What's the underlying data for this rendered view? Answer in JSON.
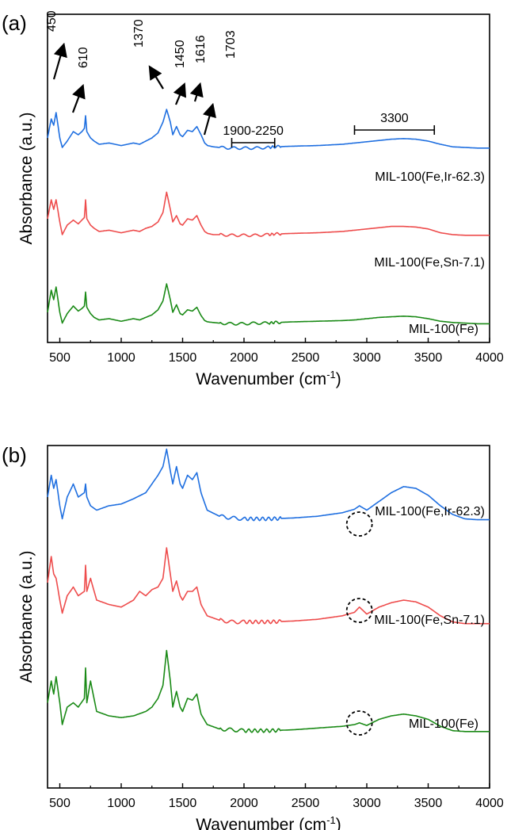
{
  "chart_data": [
    {
      "type": "line",
      "panel_label": "(a)",
      "xlabel": "Wavenumber (cm",
      "xlabel_sup": "-1",
      "xlabel_tail": ")",
      "ylabel": "Absorbance (a.u.)",
      "xlim": [
        400,
        4000
      ],
      "xticks": [
        500,
        1000,
        1500,
        2000,
        2500,
        3000,
        3500,
        4000
      ],
      "grid": false,
      "series": [
        {
          "name": "MIL-100(Fe,Ir-62.3)",
          "color": "#1f6fe0",
          "x": [
            400,
            430,
            450,
            470,
            500,
            520,
            560,
            610,
            650,
            680,
            700,
            710,
            720,
            750,
            780,
            820,
            900,
            1000,
            1100,
            1150,
            1200,
            1250,
            1300,
            1340,
            1370,
            1400,
            1420,
            1450,
            1480,
            1500,
            1540,
            1580,
            1616,
            1650,
            1680,
            1703,
            1750,
            1800,
            1900,
            2000,
            2100,
            2200,
            2250,
            2400,
            2600,
            2800,
            2900,
            3000,
            3100,
            3200,
            3300,
            3400,
            3500,
            3600,
            3700,
            3800,
            3900,
            4000
          ],
          "y": [
            0.2,
            0.5,
            0.4,
            0.6,
            0.2,
            0.05,
            0.15,
            0.3,
            0.25,
            0.3,
            0.35,
            0.55,
            0.3,
            0.2,
            0.15,
            0.1,
            0.12,
            0.08,
            0.12,
            0.1,
            0.15,
            0.2,
            0.28,
            0.45,
            0.65,
            0.45,
            0.25,
            0.38,
            0.25,
            0.22,
            0.32,
            0.3,
            0.38,
            0.25,
            0.12,
            0.08,
            0.06,
            0.05,
            0.04,
            0.04,
            0.04,
            0.05,
            0.06,
            0.07,
            0.08,
            0.1,
            0.12,
            0.14,
            0.16,
            0.18,
            0.19,
            0.18,
            0.15,
            0.1,
            0.06,
            0.05,
            0.04,
            0.04
          ]
        },
        {
          "name": "MIL-100(Fe,Sn-7.1)",
          "color": "#ee4c4c",
          "x": [
            400,
            430,
            450,
            470,
            500,
            520,
            560,
            610,
            650,
            680,
            700,
            710,
            720,
            750,
            780,
            820,
            900,
            1000,
            1100,
            1150,
            1200,
            1250,
            1300,
            1340,
            1370,
            1400,
            1420,
            1450,
            1480,
            1500,
            1540,
            1580,
            1616,
            1650,
            1680,
            1703,
            1750,
            1800,
            1900,
            2000,
            2100,
            2200,
            2250,
            2400,
            2600,
            2800,
            2900,
            3000,
            3100,
            3200,
            3300,
            3400,
            3500,
            3600,
            3700,
            3800,
            3900,
            4000
          ],
          "y": [
            0.3,
            0.6,
            0.45,
            0.6,
            0.25,
            0.05,
            0.2,
            0.28,
            0.22,
            0.28,
            0.32,
            0.6,
            0.3,
            0.2,
            0.15,
            0.1,
            0.12,
            0.08,
            0.12,
            0.1,
            0.15,
            0.18,
            0.25,
            0.4,
            0.72,
            0.45,
            0.25,
            0.35,
            0.22,
            0.2,
            0.3,
            0.28,
            0.35,
            0.2,
            0.1,
            0.07,
            0.05,
            0.05,
            0.04,
            0.04,
            0.04,
            0.05,
            0.06,
            0.07,
            0.08,
            0.1,
            0.12,
            0.14,
            0.16,
            0.18,
            0.18,
            0.17,
            0.14,
            0.08,
            0.05,
            0.04,
            0.04,
            0.04
          ]
        },
        {
          "name": "MIL-100(Fe)",
          "color": "#1a8a16",
          "x": [
            400,
            430,
            450,
            470,
            500,
            520,
            560,
            610,
            650,
            680,
            700,
            710,
            720,
            750,
            780,
            820,
            900,
            1000,
            1100,
            1150,
            1200,
            1250,
            1300,
            1340,
            1370,
            1400,
            1420,
            1450,
            1480,
            1500,
            1540,
            1580,
            1616,
            1650,
            1680,
            1703,
            1750,
            1800,
            1900,
            2000,
            2100,
            2200,
            2250,
            2400,
            2600,
            2800,
            2900,
            3000,
            3100,
            3200,
            3300,
            3400,
            3500,
            3600,
            3700,
            3800,
            3900,
            4000
          ],
          "y": [
            0.2,
            0.55,
            0.4,
            0.6,
            0.2,
            0.03,
            0.18,
            0.3,
            0.22,
            0.26,
            0.3,
            0.52,
            0.28,
            0.18,
            0.12,
            0.08,
            0.1,
            0.06,
            0.1,
            0.08,
            0.12,
            0.16,
            0.24,
            0.38,
            0.65,
            0.4,
            0.2,
            0.32,
            0.18,
            0.16,
            0.24,
            0.22,
            0.28,
            0.15,
            0.07,
            0.05,
            0.04,
            0.03,
            0.02,
            0.02,
            0.03,
            0.03,
            0.04,
            0.05,
            0.06,
            0.07,
            0.08,
            0.1,
            0.12,
            0.13,
            0.14,
            0.13,
            0.1,
            0.06,
            0.04,
            0.03,
            0.02,
            0.02
          ]
        }
      ],
      "arrows": [
        "450",
        "610",
        "1370",
        "1450",
        "1616",
        "1703"
      ],
      "ranges": [
        {
          "label": "1900-2250",
          "from": 1900,
          "to": 2250
        },
        {
          "label": "3300",
          "from": 2900,
          "to": 3550
        }
      ]
    },
    {
      "type": "line",
      "panel_label": "(b)",
      "xlabel": "Wavenumber (cm",
      "xlabel_sup": "-1",
      "xlabel_tail": ")",
      "ylabel": "Absorbance (a.u.)",
      "xlim": [
        400,
        4000
      ],
      "xticks": [
        500,
        1000,
        1500,
        2000,
        2500,
        3000,
        3500,
        4000
      ],
      "grid": false,
      "series": [
        {
          "name": "MIL-100(Fe,Ir-62.3)",
          "color": "#1f6fe0",
          "x": [
            400,
            430,
            450,
            470,
            500,
            520,
            560,
            610,
            650,
            700,
            710,
            720,
            750,
            800,
            900,
            1000,
            1100,
            1200,
            1250,
            1300,
            1340,
            1370,
            1400,
            1420,
            1450,
            1480,
            1500,
            1540,
            1580,
            1616,
            1650,
            1700,
            1800,
            1900,
            2000,
            2200,
            2400,
            2600,
            2800,
            2900,
            2940,
            3000,
            3100,
            3200,
            3300,
            3400,
            3500,
            3600,
            3700,
            3800,
            3900,
            4000
          ],
          "y": [
            0.3,
            0.55,
            0.4,
            0.5,
            0.2,
            0.05,
            0.3,
            0.45,
            0.3,
            0.35,
            0.45,
            0.3,
            0.2,
            0.15,
            0.2,
            0.22,
            0.28,
            0.35,
            0.45,
            0.55,
            0.65,
            0.85,
            0.6,
            0.45,
            0.65,
            0.45,
            0.4,
            0.55,
            0.5,
            0.58,
            0.35,
            0.15,
            0.08,
            0.06,
            0.05,
            0.05,
            0.06,
            0.08,
            0.12,
            0.16,
            0.2,
            0.15,
            0.25,
            0.35,
            0.42,
            0.4,
            0.32,
            0.2,
            0.1,
            0.05,
            0.04,
            0.04
          ]
        },
        {
          "name": "MIL-100(Fe,Sn-7.1)",
          "color": "#ee4c4c",
          "x": [
            400,
            430,
            450,
            470,
            500,
            520,
            560,
            610,
            650,
            700,
            710,
            720,
            750,
            800,
            900,
            1000,
            1100,
            1150,
            1200,
            1250,
            1300,
            1340,
            1370,
            1400,
            1420,
            1450,
            1480,
            1500,
            1540,
            1580,
            1616,
            1650,
            1700,
            1800,
            1900,
            2000,
            2200,
            2400,
            2600,
            2800,
            2900,
            2940,
            3000,
            3100,
            3200,
            3300,
            3400,
            3500,
            3600,
            3700,
            3800,
            3900,
            4000
          ],
          "y": [
            0.5,
            0.8,
            0.6,
            0.55,
            0.3,
            0.15,
            0.35,
            0.45,
            0.35,
            0.4,
            0.7,
            0.4,
            0.55,
            0.3,
            0.25,
            0.22,
            0.3,
            0.4,
            0.35,
            0.42,
            0.45,
            0.55,
            0.9,
            0.6,
            0.4,
            0.52,
            0.35,
            0.3,
            0.4,
            0.4,
            0.45,
            0.25,
            0.12,
            0.07,
            0.05,
            0.05,
            0.05,
            0.06,
            0.08,
            0.12,
            0.16,
            0.22,
            0.14,
            0.22,
            0.27,
            0.3,
            0.28,
            0.22,
            0.12,
            0.05,
            0.03,
            0.03,
            0.03
          ]
        },
        {
          "name": "MIL-100(Fe)",
          "color": "#1a8a16",
          "x": [
            400,
            430,
            450,
            470,
            500,
            520,
            560,
            610,
            650,
            700,
            710,
            720,
            750,
            800,
            900,
            1000,
            1100,
            1200,
            1250,
            1300,
            1340,
            1370,
            1400,
            1420,
            1450,
            1480,
            1500,
            1540,
            1580,
            1616,
            1650,
            1700,
            1800,
            1900,
            2000,
            2200,
            2400,
            2600,
            2800,
            2900,
            2940,
            3000,
            3100,
            3200,
            3300,
            3400,
            3500,
            3600,
            3700,
            3800,
            3900,
            4000
          ],
          "y": [
            0.35,
            0.6,
            0.45,
            0.65,
            0.35,
            0.1,
            0.3,
            0.35,
            0.3,
            0.4,
            0.75,
            0.35,
            0.6,
            0.25,
            0.2,
            0.18,
            0.2,
            0.25,
            0.3,
            0.4,
            0.55,
            0.95,
            0.6,
            0.3,
            0.48,
            0.3,
            0.25,
            0.4,
            0.38,
            0.45,
            0.22,
            0.1,
            0.05,
            0.04,
            0.03,
            0.03,
            0.04,
            0.06,
            0.08,
            0.1,
            0.12,
            0.09,
            0.16,
            0.2,
            0.22,
            0.2,
            0.16,
            0.08,
            0.03,
            0.02,
            0.02,
            0.02
          ]
        }
      ],
      "highlight_circles": [
        2940
      ]
    }
  ]
}
